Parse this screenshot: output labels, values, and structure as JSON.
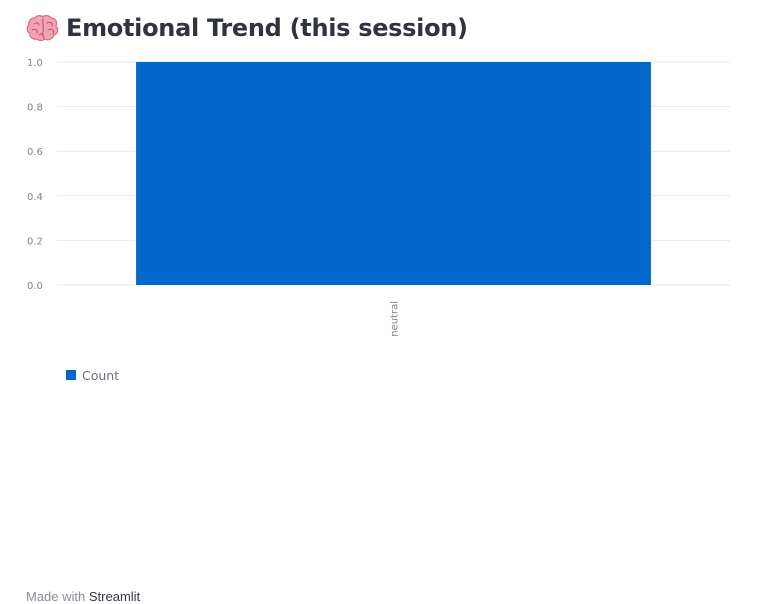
{
  "header": {
    "title": "Emotional Trend (this session)",
    "icon": "brain-icon"
  },
  "chart_data": {
    "type": "bar",
    "categories": [
      "neutral"
    ],
    "series": [
      {
        "name": "Count",
        "values": [
          1
        ],
        "color": "#0068c9"
      }
    ],
    "title": "",
    "xlabel": "",
    "ylabel": "",
    "ylim": [
      0,
      1
    ],
    "yticks": [
      "0.0",
      "0.2",
      "0.4",
      "0.6",
      "0.8",
      "1.0"
    ],
    "grid": true,
    "legend": "bottom-left"
  },
  "footer": {
    "prefix": "Made with",
    "brand": "Streamlit"
  }
}
